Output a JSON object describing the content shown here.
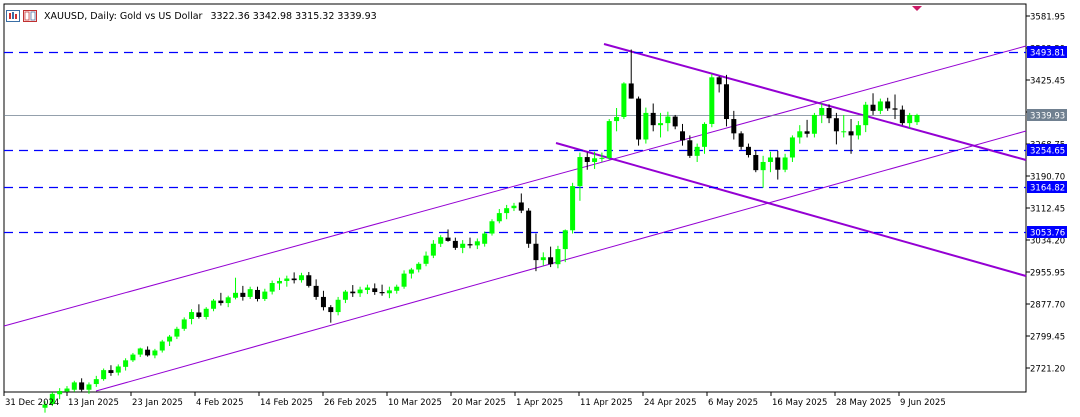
{
  "header": {
    "title": "XAUUSD, Daily:  Gold vs US Dollar",
    "ohlc": "3322.36 3342.98 3315.32 3339.93",
    "icon_left": "bar-chart-icon",
    "icon_right": "chart-window-icon"
  },
  "colors": {
    "background": "#ffffff",
    "bull_candle": "#00ff00",
    "bear_candle": "#000000",
    "channel": "#9400d3",
    "level_line": "#0000ff",
    "price_line": "#708090",
    "axis": "#000000"
  },
  "axes": {
    "y_ticks": [
      "3581.95",
      "3503.59",
      "3425.45",
      "3347.31",
      "3268.75",
      "3190.70",
      "3112.45",
      "3034.20",
      "2955.95",
      "2877.70",
      "2799.45",
      "2721.20"
    ],
    "x_ticks": [
      "31 Dec 2024",
      "13 Jan 2025",
      "23 Jan 2025",
      "4 Feb 2025",
      "14 Feb 2025",
      "26 Feb 2025",
      "10 Mar 2025",
      "20 Mar 2025",
      "1 Apr 2025",
      "11 Apr 2025",
      "24 Apr 2025",
      "6 May 2025",
      "16 May 2025",
      "28 May 2025",
      "9 Jun 2025"
    ],
    "y_range": [
      2670,
      3595
    ]
  },
  "levels": [
    {
      "label": "3493.81",
      "value": 3493.81
    },
    {
      "label": "3254.65",
      "value": 3254.65
    },
    {
      "label": "3164.82",
      "value": 3164.82
    },
    {
      "label": "3053.76",
      "value": 3053.76
    }
  ],
  "current_price": {
    "label": "3339.93",
    "value": 3339.93
  },
  "chart_data": {
    "type": "candlestick",
    "symbol": "XAUUSD",
    "timeframe": "Daily",
    "last_ohlc": {
      "open": 3322.36,
      "high": 3342.98,
      "low": 3315.32,
      "close": 3339.93
    },
    "candles": [
      {
        "o": 2624,
        "h": 2640,
        "l": 2612,
        "c": 2632
      },
      {
        "o": 2633,
        "h": 2662,
        "l": 2628,
        "c": 2658
      },
      {
        "o": 2657,
        "h": 2672,
        "l": 2645,
        "c": 2665
      },
      {
        "o": 2664,
        "h": 2677,
        "l": 2654,
        "c": 2671
      },
      {
        "o": 2668,
        "h": 2690,
        "l": 2663,
        "c": 2686
      },
      {
        "o": 2686,
        "h": 2696,
        "l": 2664,
        "c": 2668
      },
      {
        "o": 2668,
        "h": 2686,
        "l": 2658,
        "c": 2681
      },
      {
        "o": 2682,
        "h": 2702,
        "l": 2675,
        "c": 2694
      },
      {
        "o": 2694,
        "h": 2720,
        "l": 2690,
        "c": 2716
      },
      {
        "o": 2716,
        "h": 2728,
        "l": 2702,
        "c": 2709
      },
      {
        "o": 2710,
        "h": 2730,
        "l": 2703,
        "c": 2725
      },
      {
        "o": 2724,
        "h": 2745,
        "l": 2715,
        "c": 2740
      },
      {
        "o": 2740,
        "h": 2758,
        "l": 2736,
        "c": 2754
      },
      {
        "o": 2754,
        "h": 2771,
        "l": 2748,
        "c": 2769
      },
      {
        "o": 2766,
        "h": 2774,
        "l": 2749,
        "c": 2752
      },
      {
        "o": 2752,
        "h": 2768,
        "l": 2745,
        "c": 2764
      },
      {
        "o": 2764,
        "h": 2790,
        "l": 2759,
        "c": 2786
      },
      {
        "o": 2786,
        "h": 2802,
        "l": 2775,
        "c": 2798
      },
      {
        "o": 2798,
        "h": 2822,
        "l": 2792,
        "c": 2817
      },
      {
        "o": 2817,
        "h": 2845,
        "l": 2812,
        "c": 2840
      },
      {
        "o": 2841,
        "h": 2865,
        "l": 2828,
        "c": 2858
      },
      {
        "o": 2857,
        "h": 2877,
        "l": 2842,
        "c": 2846
      },
      {
        "o": 2846,
        "h": 2870,
        "l": 2840,
        "c": 2866
      },
      {
        "o": 2866,
        "h": 2890,
        "l": 2860,
        "c": 2886
      },
      {
        "o": 2886,
        "h": 2905,
        "l": 2874,
        "c": 2880
      },
      {
        "o": 2880,
        "h": 2898,
        "l": 2870,
        "c": 2894
      },
      {
        "o": 2893,
        "h": 2942,
        "l": 2889,
        "c": 2905
      },
      {
        "o": 2905,
        "h": 2922,
        "l": 2886,
        "c": 2895
      },
      {
        "o": 2895,
        "h": 2920,
        "l": 2890,
        "c": 2914
      },
      {
        "o": 2912,
        "h": 2920,
        "l": 2884,
        "c": 2890
      },
      {
        "o": 2890,
        "h": 2915,
        "l": 2885,
        "c": 2908
      },
      {
        "o": 2908,
        "h": 2935,
        "l": 2901,
        "c": 2929
      },
      {
        "o": 2928,
        "h": 2942,
        "l": 2912,
        "c": 2934
      },
      {
        "o": 2934,
        "h": 2947,
        "l": 2920,
        "c": 2940
      },
      {
        "o": 2940,
        "h": 2955,
        "l": 2928,
        "c": 2936
      },
      {
        "o": 2936,
        "h": 2954,
        "l": 2930,
        "c": 2948
      },
      {
        "o": 2948,
        "h": 2956,
        "l": 2918,
        "c": 2922
      },
      {
        "o": 2922,
        "h": 2938,
        "l": 2888,
        "c": 2895
      },
      {
        "o": 2895,
        "h": 2910,
        "l": 2862,
        "c": 2870
      },
      {
        "o": 2870,
        "h": 2875,
        "l": 2832,
        "c": 2858
      },
      {
        "o": 2858,
        "h": 2895,
        "l": 2850,
        "c": 2888
      },
      {
        "o": 2888,
        "h": 2912,
        "l": 2880,
        "c": 2908
      },
      {
        "o": 2908,
        "h": 2924,
        "l": 2895,
        "c": 2904
      },
      {
        "o": 2904,
        "h": 2920,
        "l": 2895,
        "c": 2913
      },
      {
        "o": 2912,
        "h": 2925,
        "l": 2902,
        "c": 2918
      },
      {
        "o": 2916,
        "h": 2928,
        "l": 2900,
        "c": 2907
      },
      {
        "o": 2907,
        "h": 2925,
        "l": 2898,
        "c": 2904
      },
      {
        "o": 2904,
        "h": 2920,
        "l": 2892,
        "c": 2911
      },
      {
        "o": 2910,
        "h": 2925,
        "l": 2903,
        "c": 2920
      },
      {
        "o": 2920,
        "h": 2960,
        "l": 2915,
        "c": 2952
      },
      {
        "o": 2952,
        "h": 2966,
        "l": 2940,
        "c": 2962
      },
      {
        "o": 2962,
        "h": 2980,
        "l": 2955,
        "c": 2976
      },
      {
        "o": 2976,
        "h": 3006,
        "l": 2970,
        "c": 2996
      },
      {
        "o": 2996,
        "h": 3034,
        "l": 2990,
        "c": 3025
      },
      {
        "o": 3025,
        "h": 3046,
        "l": 3017,
        "c": 3041
      },
      {
        "o": 3040,
        "h": 3060,
        "l": 3030,
        "c": 3032
      },
      {
        "o": 3032,
        "h": 3040,
        "l": 3010,
        "c": 3015
      },
      {
        "o": 3015,
        "h": 3034,
        "l": 3002,
        "c": 3025
      },
      {
        "o": 3024,
        "h": 3040,
        "l": 3014,
        "c": 3021
      },
      {
        "o": 3021,
        "h": 3038,
        "l": 3012,
        "c": 3031
      },
      {
        "o": 3025,
        "h": 3055,
        "l": 3018,
        "c": 3050
      },
      {
        "o": 3050,
        "h": 3085,
        "l": 3045,
        "c": 3080
      },
      {
        "o": 3080,
        "h": 3110,
        "l": 3075,
        "c": 3100
      },
      {
        "o": 3100,
        "h": 3120,
        "l": 3085,
        "c": 3112
      },
      {
        "o": 3112,
        "h": 3125,
        "l": 3105,
        "c": 3118
      },
      {
        "o": 3126,
        "h": 3148,
        "l": 3100,
        "c": 3106
      },
      {
        "o": 3106,
        "h": 3112,
        "l": 3015,
        "c": 3025
      },
      {
        "o": 3025,
        "h": 3050,
        "l": 2958,
        "c": 2985
      },
      {
        "o": 2985,
        "h": 3004,
        "l": 2972,
        "c": 2992
      },
      {
        "o": 2992,
        "h": 3018,
        "l": 2968,
        "c": 2975
      },
      {
        "o": 2975,
        "h": 3020,
        "l": 2965,
        "c": 3012
      },
      {
        "o": 3012,
        "h": 3060,
        "l": 2980,
        "c": 3058
      },
      {
        "o": 3058,
        "h": 3174,
        "l": 3050,
        "c": 3166
      },
      {
        "o": 3166,
        "h": 3248,
        "l": 3130,
        "c": 3237
      },
      {
        "o": 3237,
        "h": 3248,
        "l": 3206,
        "c": 3225
      },
      {
        "o": 3225,
        "h": 3250,
        "l": 3208,
        "c": 3234
      },
      {
        "o": 3234,
        "h": 3248,
        "l": 3225,
        "c": 3235
      },
      {
        "o": 3235,
        "h": 3330,
        "l": 3230,
        "c": 3325
      },
      {
        "o": 3325,
        "h": 3357,
        "l": 3300,
        "c": 3335
      },
      {
        "o": 3335,
        "h": 3420,
        "l": 3330,
        "c": 3417
      },
      {
        "o": 3417,
        "h": 3500,
        "l": 3380,
        "c": 3380
      },
      {
        "o": 3380,
        "h": 3385,
        "l": 3265,
        "c": 3280
      },
      {
        "o": 3280,
        "h": 3358,
        "l": 3270,
        "c": 3345
      },
      {
        "o": 3345,
        "h": 3368,
        "l": 3300,
        "c": 3315
      },
      {
        "o": 3315,
        "h": 3345,
        "l": 3285,
        "c": 3320
      },
      {
        "o": 3320,
        "h": 3348,
        "l": 3300,
        "c": 3336
      },
      {
        "o": 3336,
        "h": 3340,
        "l": 3305,
        "c": 3312
      },
      {
        "o": 3300,
        "h": 3318,
        "l": 3265,
        "c": 3278
      },
      {
        "o": 3278,
        "h": 3290,
        "l": 3235,
        "c": 3240
      },
      {
        "o": 3240,
        "h": 3270,
        "l": 3225,
        "c": 3262
      },
      {
        "o": 3262,
        "h": 3322,
        "l": 3245,
        "c": 3318
      },
      {
        "o": 3318,
        "h": 3440,
        "l": 3310,
        "c": 3432
      },
      {
        "o": 3432,
        "h": 3435,
        "l": 3395,
        "c": 3415
      },
      {
        "o": 3415,
        "h": 3438,
        "l": 3312,
        "c": 3330
      },
      {
        "o": 3330,
        "h": 3350,
        "l": 3280,
        "c": 3295
      },
      {
        "o": 3295,
        "h": 3300,
        "l": 3255,
        "c": 3262
      },
      {
        "o": 3262,
        "h": 3270,
        "l": 3236,
        "c": 3242
      },
      {
        "o": 3242,
        "h": 3254,
        "l": 3200,
        "c": 3205
      },
      {
        "o": 3205,
        "h": 3240,
        "l": 3162,
        "c": 3225
      },
      {
        "o": 3225,
        "h": 3250,
        "l": 3200,
        "c": 3236
      },
      {
        "o": 3236,
        "h": 3252,
        "l": 3182,
        "c": 3206
      },
      {
        "o": 3206,
        "h": 3245,
        "l": 3200,
        "c": 3236
      },
      {
        "o": 3236,
        "h": 3290,
        "l": 3225,
        "c": 3285
      },
      {
        "o": 3285,
        "h": 3315,
        "l": 3270,
        "c": 3300
      },
      {
        "o": 3300,
        "h": 3328,
        "l": 3285,
        "c": 3294
      },
      {
        "o": 3294,
        "h": 3345,
        "l": 3285,
        "c": 3340
      },
      {
        "o": 3340,
        "h": 3368,
        "l": 3320,
        "c": 3357
      },
      {
        "o": 3357,
        "h": 3366,
        "l": 3320,
        "c": 3332
      },
      {
        "o": 3332,
        "h": 3345,
        "l": 3268,
        "c": 3300
      },
      {
        "o": 3300,
        "h": 3340,
        "l": 3285,
        "c": 3300
      },
      {
        "o": 3300,
        "h": 3330,
        "l": 3245,
        "c": 3290
      },
      {
        "o": 3290,
        "h": 3325,
        "l": 3280,
        "c": 3315
      },
      {
        "o": 3315,
        "h": 3372,
        "l": 3298,
        "c": 3365
      },
      {
        "o": 3365,
        "h": 3393,
        "l": 3340,
        "c": 3350
      },
      {
        "o": 3350,
        "h": 3380,
        "l": 3342,
        "c": 3373
      },
      {
        "o": 3373,
        "h": 3382,
        "l": 3350,
        "c": 3356
      },
      {
        "o": 3356,
        "h": 3390,
        "l": 3330,
        "c": 3353
      },
      {
        "o": 3353,
        "h": 3363,
        "l": 3315,
        "c": 3320
      },
      {
        "o": 3320,
        "h": 3345,
        "l": 3308,
        "c": 3340
      },
      {
        "o": 3322.36,
        "h": 3342.98,
        "l": 3315.32,
        "c": 3339.93
      }
    ]
  }
}
